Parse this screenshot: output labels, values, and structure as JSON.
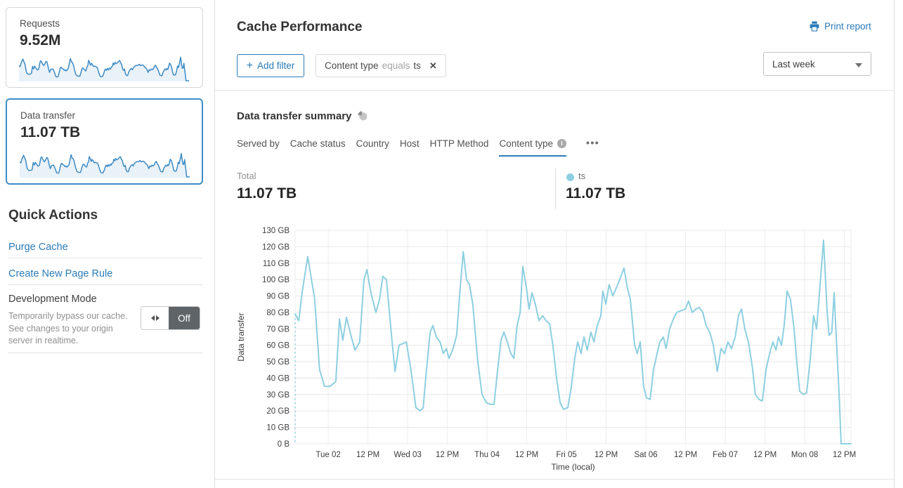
{
  "sidebar": {
    "requests_card": {
      "label": "Requests",
      "value": "9.52M"
    },
    "data_transfer_card": {
      "label": "Data transfer",
      "value": "11.07 TB"
    },
    "quick_actions": {
      "title": "Quick Actions",
      "purge_cache": "Purge Cache",
      "create_page_rule": "Create New Page Rule",
      "dev_mode": {
        "title": "Development Mode",
        "description": "Temporarily bypass our cache. See changes to your origin server in realtime.",
        "toggle_state": "Off"
      }
    }
  },
  "header": {
    "title": "Cache Performance",
    "print_report": "Print report"
  },
  "filters": {
    "add_label": "Add filter",
    "chip": {
      "field": "Content type",
      "operator": "equals",
      "value": "ts"
    },
    "time_range": "Last week"
  },
  "icons": {
    "plus": "+",
    "close": "✕",
    "more": "•••",
    "info": "i"
  },
  "summary": {
    "title": "Data transfer summary",
    "tabs": [
      {
        "label": "Served by"
      },
      {
        "label": "Cache status"
      },
      {
        "label": "Country"
      },
      {
        "label": "Host"
      },
      {
        "label": "HTTP Method"
      },
      {
        "label": "Content type"
      }
    ],
    "total_label": "Total",
    "total_value": "11.07 TB",
    "series_label": "ts",
    "series_value": "11.07 TB"
  },
  "chart_data": {
    "type": "line",
    "title": "Data transfer summary",
    "xlabel": "Time (local)",
    "ylabel": "Data transfer",
    "y_unit": "GB",
    "y_min": 0,
    "y_max": 130,
    "t_max": 168,
    "grid": true,
    "legend": [
      {
        "name": "ts",
        "color": "#8dcfe0"
      }
    ],
    "y_ticks": [
      "0 B",
      "10 GB",
      "20 GB",
      "30 GB",
      "40 GB",
      "50 GB",
      "60 GB",
      "70 GB",
      "80 GB",
      "90 GB",
      "100 GB",
      "110 GB",
      "120 GB",
      "130 GB"
    ],
    "x_ticks": [
      {
        "t": 10,
        "label": "Tue 02"
      },
      {
        "t": 22,
        "label": "12 PM"
      },
      {
        "t": 34,
        "label": "Wed 03"
      },
      {
        "t": 46,
        "label": "12 PM"
      },
      {
        "t": 58,
        "label": "Thu 04"
      },
      {
        "t": 70,
        "label": "12 PM"
      },
      {
        "t": 82,
        "label": "Fri 05"
      },
      {
        "t": 94,
        "label": "12 PM"
      },
      {
        "t": 106,
        "label": "Sat 06"
      },
      {
        "t": 118,
        "label": "12 PM"
      },
      {
        "t": 130,
        "label": "Feb 07"
      },
      {
        "t": 142,
        "label": "12 PM"
      },
      {
        "t": 154,
        "label": "Mon 08"
      },
      {
        "t": 166,
        "label": "12 PM"
      }
    ],
    "series": [
      {
        "name": "ts",
        "color": "#8dcfe0",
        "points": [
          [
            0,
            79
          ],
          [
            1.1,
            75
          ],
          [
            2.1,
            92
          ],
          [
            3.8,
            114
          ],
          [
            5.9,
            88
          ],
          [
            7.4,
            45
          ],
          [
            8.9,
            35
          ],
          [
            10.6,
            35
          ],
          [
            12.3,
            38
          ],
          [
            13.4,
            76
          ],
          [
            14.4,
            63
          ],
          [
            15.5,
            77
          ],
          [
            17,
            65
          ],
          [
            18.1,
            57
          ],
          [
            19.5,
            62
          ],
          [
            20.8,
            100
          ],
          [
            21.7,
            106
          ],
          [
            22.9,
            92
          ],
          [
            24.4,
            80
          ],
          [
            25.5,
            88
          ],
          [
            26.5,
            102
          ],
          [
            27.6,
            100
          ],
          [
            29.3,
            62
          ],
          [
            30.2,
            44
          ],
          [
            31.4,
            60
          ],
          [
            32.5,
            61
          ],
          [
            33.6,
            62
          ],
          [
            35,
            45
          ],
          [
            36.5,
            22
          ],
          [
            37.8,
            20
          ],
          [
            38.7,
            22
          ],
          [
            39.7,
            45
          ],
          [
            40.8,
            68
          ],
          [
            41.6,
            72
          ],
          [
            42.7,
            65
          ],
          [
            43.8,
            62
          ],
          [
            44.8,
            55
          ],
          [
            45.7,
            58
          ],
          [
            46.5,
            52
          ],
          [
            47.6,
            57
          ],
          [
            48.8,
            66
          ],
          [
            49.9,
            95
          ],
          [
            50.8,
            117
          ],
          [
            51.8,
            100
          ],
          [
            52.7,
            97
          ],
          [
            53.7,
            85
          ],
          [
            55.2,
            50
          ],
          [
            56.5,
            30
          ],
          [
            57.8,
            25
          ],
          [
            59,
            24
          ],
          [
            60.1,
            24
          ],
          [
            61.2,
            45
          ],
          [
            62.2,
            63
          ],
          [
            63.1,
            68
          ],
          [
            64.1,
            62
          ],
          [
            65.2,
            55
          ],
          [
            66.1,
            52
          ],
          [
            67.1,
            72
          ],
          [
            68,
            80
          ],
          [
            68.8,
            108
          ],
          [
            69.9,
            95
          ],
          [
            70.7,
            82
          ],
          [
            71.6,
            92
          ],
          [
            72.6,
            85
          ],
          [
            73.7,
            75
          ],
          [
            74.8,
            78
          ],
          [
            75.8,
            75
          ],
          [
            76.9,
            73
          ],
          [
            77.9,
            60
          ],
          [
            79,
            40
          ],
          [
            80.1,
            25
          ],
          [
            81.1,
            21
          ],
          [
            82.4,
            22
          ],
          [
            83.5,
            35
          ],
          [
            84.5,
            52
          ],
          [
            85.4,
            62
          ],
          [
            86.4,
            55
          ],
          [
            87.3,
            65
          ],
          [
            88.3,
            57
          ],
          [
            89.4,
            68
          ],
          [
            90.3,
            62
          ],
          [
            91.3,
            72
          ],
          [
            92.4,
            78
          ],
          [
            93,
            93
          ],
          [
            93.9,
            85
          ],
          [
            94.9,
            97
          ],
          [
            96,
            90
          ],
          [
            97.1,
            95
          ],
          [
            98.1,
            100
          ],
          [
            99.4,
            107
          ],
          [
            100.4,
            95
          ],
          [
            101.3,
            88
          ],
          [
            102.6,
            60
          ],
          [
            103.4,
            55
          ],
          [
            104.3,
            62
          ],
          [
            105.3,
            35
          ],
          [
            106.2,
            28
          ],
          [
            107.3,
            27
          ],
          [
            108.3,
            45
          ],
          [
            109.4,
            55
          ],
          [
            110.2,
            62
          ],
          [
            111.3,
            65
          ],
          [
            112.1,
            58
          ],
          [
            113.2,
            70
          ],
          [
            114.3,
            76
          ],
          [
            115.3,
            80
          ],
          [
            117.9,
            82
          ],
          [
            118.9,
            87
          ],
          [
            120,
            80
          ],
          [
            121.1,
            82
          ],
          [
            122.1,
            83
          ],
          [
            123.2,
            80
          ],
          [
            124.2,
            72
          ],
          [
            125.3,
            68
          ],
          [
            126.4,
            60
          ],
          [
            127.6,
            44
          ],
          [
            128.7,
            58
          ],
          [
            129.8,
            55
          ],
          [
            130.8,
            62
          ],
          [
            131.9,
            58
          ],
          [
            133,
            65
          ],
          [
            134,
            78
          ],
          [
            134.9,
            82
          ],
          [
            135.9,
            70
          ],
          [
            137,
            62
          ],
          [
            138.1,
            48
          ],
          [
            139.1,
            30
          ],
          [
            140.2,
            27
          ],
          [
            141.2,
            26
          ],
          [
            142.3,
            45
          ],
          [
            143.4,
            55
          ],
          [
            144.4,
            62
          ],
          [
            145.3,
            57
          ],
          [
            146.1,
            65
          ],
          [
            147,
            60
          ],
          [
            147.8,
            72
          ],
          [
            148.7,
            93
          ],
          [
            149.7,
            88
          ],
          [
            150.8,
            70
          ],
          [
            151.6,
            50
          ],
          [
            152.5,
            32
          ],
          [
            153.6,
            30
          ],
          [
            154.6,
            31
          ],
          [
            155.7,
            52
          ],
          [
            156.7,
            78
          ],
          [
            157.6,
            70
          ],
          [
            158.6,
            95
          ],
          [
            159.7,
            124
          ],
          [
            160.8,
            80
          ],
          [
            161.4,
            66
          ],
          [
            162.2,
            68
          ],
          [
            162.9,
            92
          ],
          [
            163.5,
            67
          ],
          [
            164.4,
            30
          ],
          [
            165,
            0
          ],
          [
            166.1,
            0
          ],
          [
            168,
            0
          ]
        ]
      }
    ],
    "sparkline": {
      "stroke": "#3d8bc4",
      "fill": "#e9f1f9"
    }
  }
}
